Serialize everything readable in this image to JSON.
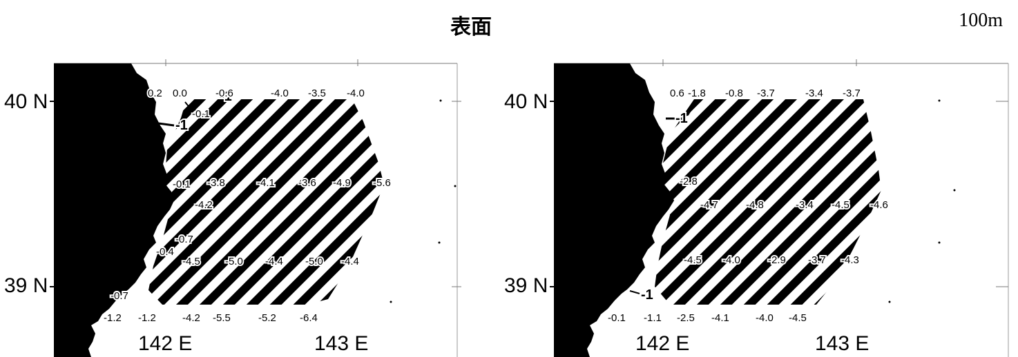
{
  "header": {
    "title": "表面",
    "depth": "100m"
  },
  "maps": [
    {
      "id": "left",
      "y_ticks": [
        "40 N",
        "39 N"
      ],
      "x_ticks": [
        "142 E",
        "143 E"
      ],
      "contour_labels": [
        "-1",
        "-1"
      ],
      "values": [
        "0.2",
        "0.0",
        "-0.6",
        "-0.1",
        "-4.0",
        "-3.5",
        "-4.0",
        "-0.1",
        "-3.8",
        "-4.1",
        "-3.6",
        "-4.9",
        "-5.6",
        "-4.2",
        "-0.7",
        "-0.4",
        "-4.5",
        "-5.0",
        "-4.4",
        "-5.0",
        "-4.4",
        "-0.7",
        "-1.2",
        "-1.2",
        "-4.2",
        "-5.5",
        "-5.2",
        "-6.4"
      ]
    },
    {
      "id": "right",
      "y_ticks": [
        "40 N",
        "39 N"
      ],
      "x_ticks": [
        "142 E",
        "143 E"
      ],
      "contour_labels": [
        "-1",
        "-1"
      ],
      "values": [
        "0.6",
        "-1.8",
        "-0.8",
        "-3.7",
        "-3.4",
        "-3.7",
        "-2.8",
        "-4.7",
        "-4.8",
        "-3.4",
        "-4.5",
        "-4.6",
        "-4.5",
        "-4.0",
        "-2.9",
        "-3.7",
        "-4.3",
        "-0.1",
        "-1.1",
        "-2.5",
        "-4.1",
        "-4.0",
        "-4.5"
      ]
    }
  ]
}
